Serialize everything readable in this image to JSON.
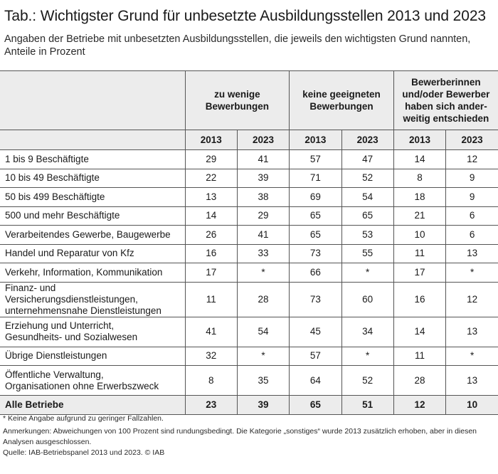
{
  "title": "Tab.: Wichtigster Grund für unbesetzte Ausbildungsstellen 2013 und 2023",
  "subtitle": "Angaben der Betriebe mit unbesetzten Ausbildungsstellen, die jeweils den wichtigsten Grund nannten, Anteile in Prozent",
  "table": {
    "groups": [
      "zu wenige Bewerbungen",
      "keine geeigneten Bewerbungen",
      "Bewerberinnen und/oder Bewerber haben sich anderweitig entschieden"
    ],
    "group_lines": [
      [
        "zu wenige",
        "Bewerbungen"
      ],
      [
        "keine geeigneten",
        "Bewerbungen"
      ],
      [
        "Bewerberinnen",
        "und/oder Bewerber",
        "haben sich ander-",
        "weitig entschieden"
      ]
    ],
    "years": [
      "2013",
      "2023",
      "2013",
      "2023",
      "2013",
      "2023"
    ],
    "rows": [
      {
        "label": [
          "1 bis 9 Beschäftigte"
        ],
        "values": [
          "29",
          "41",
          "57",
          "47",
          "14",
          "12"
        ]
      },
      {
        "label": [
          "10 bis 49 Beschäftigte"
        ],
        "values": [
          "22",
          "39",
          "71",
          "52",
          "8",
          "9"
        ]
      },
      {
        "label": [
          "50 bis 499 Beschäftigte"
        ],
        "values": [
          "13",
          "38",
          "69",
          "54",
          "18",
          "9"
        ]
      },
      {
        "label": [
          "500 und mehr Beschäftigte"
        ],
        "values": [
          "14",
          "29",
          "65",
          "65",
          "21",
          "6"
        ]
      },
      {
        "label": [
          "Verarbeitendes Gewerbe, Baugewerbe"
        ],
        "values": [
          "26",
          "41",
          "65",
          "53",
          "10",
          "6"
        ]
      },
      {
        "label": [
          "Handel und Reparatur von Kfz"
        ],
        "values": [
          "16",
          "33",
          "73",
          "55",
          "11",
          "13"
        ]
      },
      {
        "label": [
          "Verkehr, Information, Kommunikation"
        ],
        "values": [
          "17",
          "*",
          "66",
          "*",
          "17",
          "*"
        ]
      },
      {
        "label": [
          "Finanz- und Versicherungsdienstleistungen,",
          "unternehmensnahe Dienstleistungen"
        ],
        "values": [
          "11",
          "28",
          "73",
          "60",
          "16",
          "12"
        ]
      },
      {
        "label": [
          "Erziehung und Unterricht,",
          "Gesundheits- und Sozialwesen"
        ],
        "values": [
          "41",
          "54",
          "45",
          "34",
          "14",
          "13"
        ]
      },
      {
        "label": [
          "Übrige Dienstleistungen"
        ],
        "values": [
          "32",
          "*",
          "57",
          "*",
          "11",
          "*"
        ]
      },
      {
        "label": [
          "Öffentliche Verwaltung,",
          "Organisationen ohne Erwerbszweck"
        ],
        "values": [
          "8",
          "35",
          "64",
          "52",
          "28",
          "13"
        ]
      }
    ],
    "total": {
      "label": "Alle Betriebe",
      "values": [
        "23",
        "39",
        "65",
        "51",
        "12",
        "10"
      ]
    }
  },
  "notes": {
    "footnote": "* Keine Angabe aufgrund zu geringer Fallzahlen.",
    "remarks": "Anmerkungen: Abweichungen von 100 Prozent sind rundungsbedingt. Die Kategorie „sonstiges“ wurde 2013 zusätzlich erhoben, aber in diesen Analysen ausgeschlossen.",
    "source": "Quelle: IAB-Betriebspanel 2013 und 2023.  © IAB"
  },
  "colors": {
    "header_bg": "#ececec",
    "rule": "#555555",
    "text": "#1a1a1a"
  }
}
